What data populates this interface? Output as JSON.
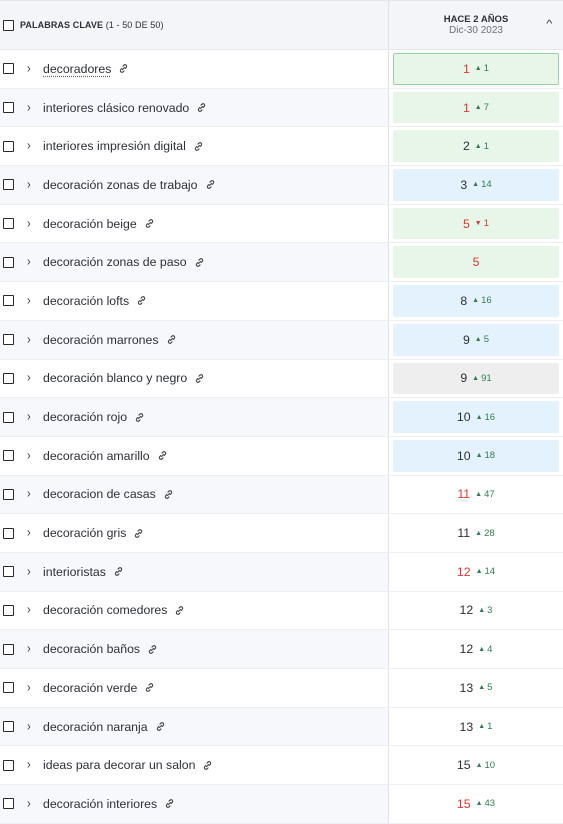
{
  "header": {
    "title": "PALABRAS CLAVE",
    "count": "(1 - 50 DE 50)",
    "rank_col_title": "HACE 2 AÑOS",
    "rank_col_date": "Dic-30 2023"
  },
  "colors": {
    "green_box": "#e7f6e9",
    "blue_box": "#e3f2fd",
    "gray_box": "#eeeeee",
    "up_arrow": "#2e7d4f",
    "down_red": "#d9392f"
  },
  "rows": [
    {
      "keyword": "decoradores",
      "position": "1",
      "delta": "1",
      "dir": "up",
      "pos_color": "red",
      "box": "green",
      "selected": true,
      "dotted": true
    },
    {
      "keyword": "interiores clásico renovado",
      "position": "1",
      "delta": "7",
      "dir": "up",
      "pos_color": "red",
      "box": "green"
    },
    {
      "keyword": "interiores impresión digital",
      "position": "2",
      "delta": "1",
      "dir": "up",
      "pos_color": "dark",
      "box": "green"
    },
    {
      "keyword": "decoración zonas de trabajo",
      "position": "3",
      "delta": "14",
      "dir": "up",
      "pos_color": "dark",
      "box": "blue"
    },
    {
      "keyword": "decoración beige",
      "position": "5",
      "delta": "1",
      "dir": "down",
      "pos_color": "red",
      "box": "green"
    },
    {
      "keyword": "decoración zonas de paso",
      "position": "5",
      "delta": "",
      "dir": "none",
      "pos_color": "red",
      "box": "green"
    },
    {
      "keyword": "decoración lofts",
      "position": "8",
      "delta": "16",
      "dir": "up",
      "pos_color": "dark",
      "box": "blue"
    },
    {
      "keyword": "decoración marrones",
      "position": "9",
      "delta": "5",
      "dir": "up",
      "pos_color": "dark",
      "box": "blue"
    },
    {
      "keyword": "decoración blanco y negro",
      "position": "9",
      "delta": "91",
      "dir": "up",
      "pos_color": "dark",
      "box": "gray"
    },
    {
      "keyword": "decoración rojo",
      "position": "10",
      "delta": "16",
      "dir": "up",
      "pos_color": "dark",
      "box": "blue"
    },
    {
      "keyword": "decoración amarillo",
      "position": "10",
      "delta": "18",
      "dir": "up",
      "pos_color": "dark",
      "box": "blue"
    },
    {
      "keyword": "decoracion de casas",
      "position": "11",
      "delta": "47",
      "dir": "up",
      "pos_color": "red",
      "box": "none"
    },
    {
      "keyword": "decoración gris",
      "position": "11",
      "delta": "28",
      "dir": "up",
      "pos_color": "dark",
      "box": "none"
    },
    {
      "keyword": "interioristas",
      "position": "12",
      "delta": "14",
      "dir": "up",
      "pos_color": "red",
      "box": "none"
    },
    {
      "keyword": "decoración comedores",
      "position": "12",
      "delta": "3",
      "dir": "up",
      "pos_color": "dark",
      "box": "none"
    },
    {
      "keyword": "decoración baños",
      "position": "12",
      "delta": "4",
      "dir": "up",
      "pos_color": "dark",
      "box": "none"
    },
    {
      "keyword": "decoración verde",
      "position": "13",
      "delta": "5",
      "dir": "up",
      "pos_color": "dark",
      "box": "none"
    },
    {
      "keyword": "decoración naranja",
      "position": "13",
      "delta": "1",
      "dir": "up",
      "pos_color": "dark",
      "box": "none"
    },
    {
      "keyword": "ideas para decorar un salon",
      "position": "15",
      "delta": "10",
      "dir": "up",
      "pos_color": "dark",
      "box": "none"
    },
    {
      "keyword": "decoración interiores",
      "position": "15",
      "delta": "43",
      "dir": "up",
      "pos_color": "red",
      "box": "none"
    }
  ]
}
